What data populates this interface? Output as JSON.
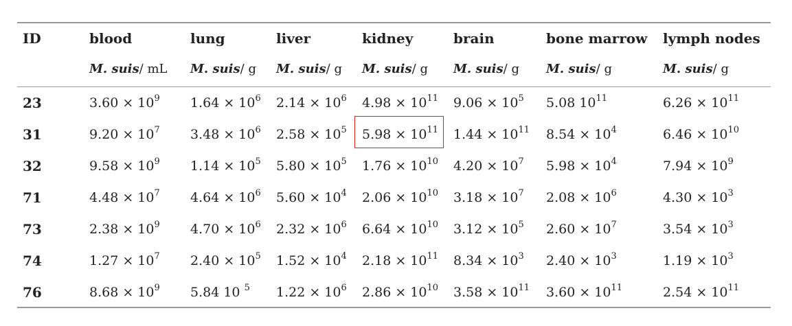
{
  "columns": [
    {
      "label": "ID",
      "unit_italic": "",
      "unit": ""
    },
    {
      "label": "blood",
      "unit_italic": "M. suis",
      "unit": "/ mL"
    },
    {
      "label": "lung",
      "unit_italic": "M. suis",
      "unit": "/ g"
    },
    {
      "label": "liver",
      "unit_italic": "M. suis",
      "unit": "/ g"
    },
    {
      "label": "kidney",
      "unit_italic": "M. suis",
      "unit": "/ g"
    },
    {
      "label": "brain",
      "unit_italic": "M. suis",
      "unit": "/ g"
    },
    {
      "label": "bone marrow",
      "unit_italic": "M. suis",
      "unit": "/ g"
    },
    {
      "label": "lymph nodes",
      "unit_italic": "M. suis",
      "unit": "/ g"
    }
  ],
  "rows": [
    {
      "id": "23",
      "cells": [
        {
          "m": "3.60 × 10",
          "e": "9"
        },
        {
          "m": "1.64 × 10",
          "e": "6"
        },
        {
          "m": "2.14 × 10",
          "e": "6"
        },
        {
          "m": "4.98 × 10",
          "e": "11"
        },
        {
          "m": "9.06 × 10",
          "e": "5"
        },
        {
          "m": "5.08 10",
          "e": "11"
        },
        {
          "m": "6.26 × 10",
          "e": "11"
        }
      ]
    },
    {
      "id": "31",
      "cells": [
        {
          "m": "9.20 × 10",
          "e": "7"
        },
        {
          "m": "3.48 × 10",
          "e": "6"
        },
        {
          "m": "2.58 × 10",
          "e": "5"
        },
        {
          "m": "5.98 × 10",
          "e": "11"
        },
        {
          "m": "1.44 × 10",
          "e": "11"
        },
        {
          "m": "8.54 × 10",
          "e": "4"
        },
        {
          "m": "6.46 × 10",
          "e": "10"
        }
      ]
    },
    {
      "id": "32",
      "cells": [
        {
          "m": "9.58 × 10",
          "e": "9"
        },
        {
          "m": "1.14 × 10",
          "e": "5"
        },
        {
          "m": "5.80 × 10",
          "e": "5"
        },
        {
          "m": "1.76 × 10",
          "e": "10"
        },
        {
          "m": "4.20 × 10",
          "e": "7"
        },
        {
          "m": "5.98 × 10",
          "e": "4"
        },
        {
          "m": "7.94 × 10",
          "e": "9"
        }
      ]
    },
    {
      "id": "71",
      "cells": [
        {
          "m": "4.48 × 10",
          "e": "7"
        },
        {
          "m": "4.64 × 10",
          "e": "6"
        },
        {
          "m": "5.60 × 10",
          "e": "4"
        },
        {
          "m": "2.06 × 10",
          "e": "10"
        },
        {
          "m": "3.18 × 10",
          "e": "7"
        },
        {
          "m": "2.08 × 10",
          "e": "6"
        },
        {
          "m": "4.30 × 10",
          "e": "3"
        }
      ]
    },
    {
      "id": "73",
      "cells": [
        {
          "m": "2.38 × 10",
          "e": "9"
        },
        {
          "m": "4.70 × 10",
          "e": "6"
        },
        {
          "m": "2.32 × 10",
          "e": "6"
        },
        {
          "m": "6.64 × 10",
          "e": "10"
        },
        {
          "m": "3.12 × 10",
          "e": "5"
        },
        {
          "m": "2.60 × 10",
          "e": "7"
        },
        {
          "m": "3.54 × 10",
          "e": "3"
        }
      ]
    },
    {
      "id": "74",
      "cells": [
        {
          "m": "1.27 × 10",
          "e": "7"
        },
        {
          "m": "2.40 × 10",
          "e": "5"
        },
        {
          "m": "1.52 × 10",
          "e": "4"
        },
        {
          "m": "2.18 × 10",
          "e": "11"
        },
        {
          "m": "8.34 × 10",
          "e": "3"
        },
        {
          "m": "2.40 × 10",
          "e": "3"
        },
        {
          "m": "1.19 × 10",
          "e": "3"
        }
      ]
    },
    {
      "id": "76",
      "cells": [
        {
          "m": "8.68 × 10",
          "e": "9"
        },
        {
          "m": "5.84 10 ",
          "e": "5"
        },
        {
          "m": "1.22 × 10",
          "e": "6"
        },
        {
          "m": "2.86 × 10",
          "e": "10"
        },
        {
          "m": "3.58 × 10",
          "e": "11"
        },
        {
          "m": "3.60 × 10",
          "e": "11"
        },
        {
          "m": "2.54 × 10",
          "e": "11"
        }
      ]
    }
  ],
  "highlight": {
    "row_id": "31",
    "column": "kidney",
    "color": "#e02020"
  }
}
